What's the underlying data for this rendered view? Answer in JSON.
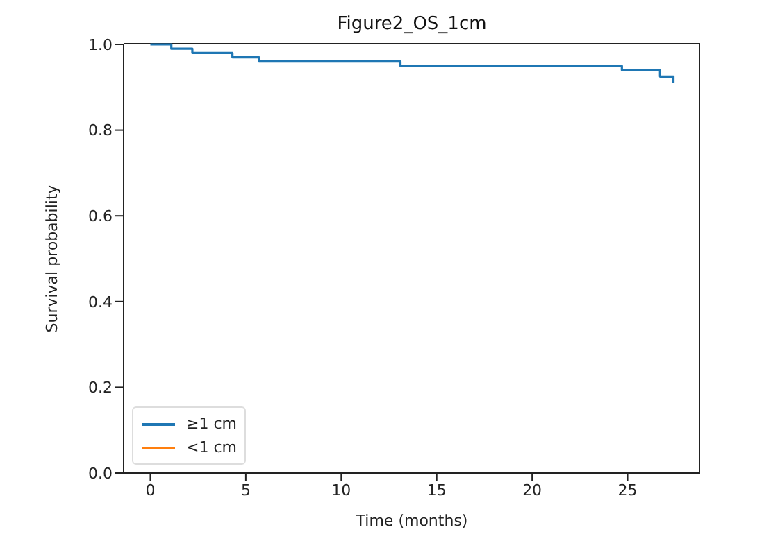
{
  "chart_data": {
    "type": "step",
    "title": "Figure2_OS_1cm",
    "xlabel": "Time (months)",
    "ylabel": "Survival probability",
    "series": [
      {
        "name": "≥1 cm",
        "color": "#1f77b4",
        "x": [
          0,
          1.1,
          2.2,
          4.3,
          5.7,
          13.1,
          24.7,
          26.7,
          27.4
        ],
        "values": [
          1.0,
          0.99,
          0.98,
          0.97,
          0.96,
          0.95,
          0.94,
          0.925,
          0.91
        ]
      },
      {
        "name": "<1 cm",
        "color": "#ff7f0e"
      }
    ],
    "xlim": [
      -1.4,
      28.8
    ],
    "xticks": [
      0,
      5,
      10,
      15,
      20,
      25
    ],
    "ylim": [
      0,
      1
    ],
    "yticks": [
      {
        "value": 0,
        "label": "0.0"
      },
      {
        "value": 0.2,
        "label": "0.2"
      },
      {
        "value": 0.4,
        "label": "0.4"
      },
      {
        "value": 0.6,
        "label": "0.6"
      },
      {
        "value": 0.8,
        "label": "0.8"
      },
      {
        "value": 1,
        "label": "1.0"
      }
    ],
    "grid": false,
    "legend": "bottom left",
    "line_style": "solid",
    "marker": "none"
  }
}
